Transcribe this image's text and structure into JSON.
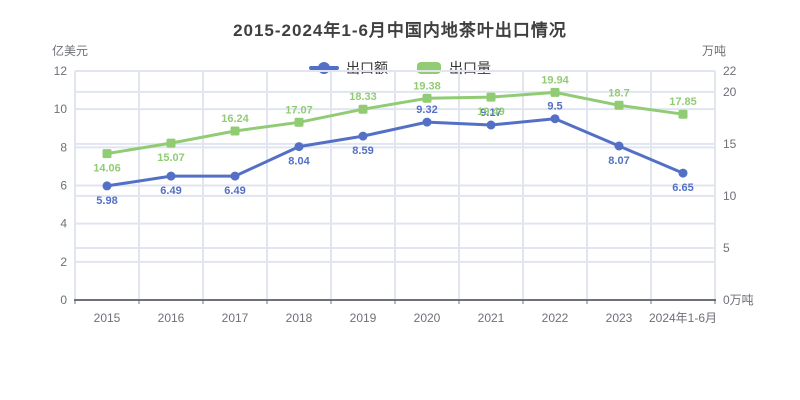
{
  "title": "2015-2024年1-6月中国内地茶叶出口情况",
  "legend": {
    "items": [
      {
        "label": "出口额",
        "color": "#5470C6"
      },
      {
        "label": "出口量",
        "color": "#91CC75"
      }
    ]
  },
  "axes": {
    "left": {
      "unit": "亿美元"
    },
    "right": {
      "unit": "万吨"
    }
  },
  "chart_data": {
    "type": "line",
    "title": "2015-2024年1-6月中国内地茶叶出口情况",
    "categories": [
      "2015",
      "2016",
      "2017",
      "2018",
      "2019",
      "2020",
      "2021",
      "2022",
      "2023",
      "2024年1-6月"
    ],
    "series": [
      {
        "id": "export-value",
        "name": "出口额",
        "unit": "亿美元",
        "axis": "left",
        "color": "#5470C6",
        "symbol": "circle",
        "values": [
          5.98,
          6.49,
          6.49,
          8.04,
          8.59,
          9.32,
          9.17,
          9.5,
          8.07,
          6.65
        ],
        "labels": [
          "5.98",
          "6.49",
          "6.49",
          "8.04",
          "8.59",
          "9.32",
          "9.17",
          "9.5",
          "8.07",
          "6.65"
        ],
        "label_side": [
          "below",
          "below",
          "below",
          "below",
          "below",
          "above",
          "above",
          "above",
          "below",
          "below"
        ]
      },
      {
        "id": "export-volume",
        "name": "出口量",
        "unit": "万吨",
        "axis": "right",
        "color": "#91CC75",
        "symbol": "square",
        "values": [
          14.06,
          15.07,
          16.24,
          17.07,
          18.33,
          19.38,
          19.49,
          19.94,
          18.7,
          17.85
        ],
        "labels": [
          "14.06",
          "15.07",
          "16.24",
          "17.07",
          "18.33",
          "19.38",
          "19.49",
          "19.94",
          "18.7",
          "17.85"
        ],
        "label_side": [
          "below",
          "below",
          "above",
          "above",
          "above",
          "above",
          "below",
          "above",
          "above",
          "above"
        ]
      }
    ],
    "left_axis": {
      "unit": "亿美元",
      "min": 0,
      "max": 12,
      "ticks": [
        0,
        2,
        4,
        6,
        8,
        10,
        12
      ]
    },
    "right_axis": {
      "unit": "万吨",
      "min": 0,
      "max": 22,
      "ticks": [
        0,
        5,
        10,
        15,
        20,
        22
      ],
      "zero_tick_label": "0万吨"
    },
    "left_ylim": [
      0,
      12
    ],
    "right_ylim": [
      0,
      22
    ],
    "grid": true,
    "grid_color": "#E1E5F0",
    "axis_line_color": "#6E7079",
    "tick_text_color": "#6E7079",
    "legend_position": "top"
  }
}
